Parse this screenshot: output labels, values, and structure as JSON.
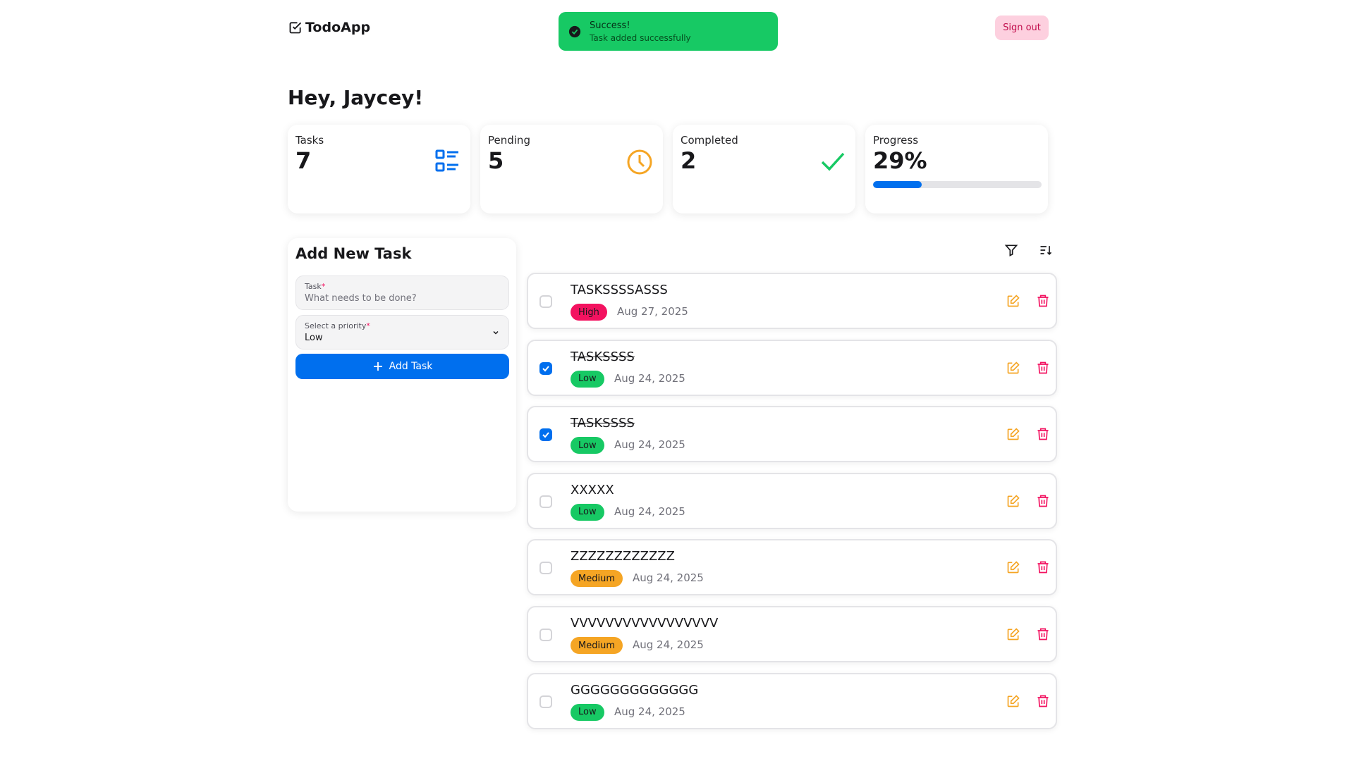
{
  "header": {
    "logo": "TodoApp",
    "sign_out": "Sign out"
  },
  "toast": {
    "title": "Success!",
    "message": "Task added successfully"
  },
  "greeting": "Hey, Jaycey!",
  "stats": [
    {
      "label": "Tasks",
      "value": "7"
    },
    {
      "label": "Pending",
      "value": "5"
    },
    {
      "label": "Completed",
      "value": "2"
    },
    {
      "label": "Progress",
      "value": {
        "value": 29,
        "label": "29%"
      }
    }
  ],
  "form": {
    "title": "Add New Task",
    "task_label": "Task",
    "required": "*",
    "task_placeholder": "What needs to be done?",
    "priority_label": "Select a priority",
    "priority_value": "Low",
    "button": "Add Task"
  },
  "tasks": [
    {
      "title": "TASKSSSSASSS",
      "priority": "High",
      "color": "#f31260",
      "date": "Aug 27, 2025",
      "completed": false
    },
    {
      "title": "TASKSSSS",
      "priority": "Low",
      "color": "#17c964",
      "date": "Aug 24, 2025",
      "completed": true
    },
    {
      "title": "TASKSSSS",
      "priority": "Low",
      "color": "#17c964",
      "date": "Aug 24, 2025",
      "completed": true
    },
    {
      "title": "XXXXX",
      "priority": "Low",
      "color": "#17c964",
      "date": "Aug 24, 2025",
      "completed": false
    },
    {
      "title": "ZZZZZZZZZZZZ",
      "priority": "Medium",
      "color": "#f5a524",
      "date": "Aug 24, 2025",
      "completed": false
    },
    {
      "title": "VVVVVVVVVVVVVVVVV",
      "priority": "Medium",
      "color": "#f5a524",
      "date": "Aug 24, 2025",
      "completed": false
    },
    {
      "title": "GGGGGGGGGGGGG",
      "priority": "Low",
      "color": "#17c964",
      "date": "Aug 24, 2025",
      "completed": false
    }
  ]
}
